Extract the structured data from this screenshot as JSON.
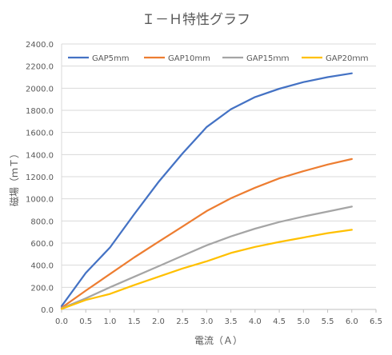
{
  "chart_data": {
    "type": "line",
    "title": "Ｉ－Ｈ特性グラフ",
    "xlabel": "電流（Ａ）",
    "ylabel": "磁場（ｍＴ）",
    "xlim": [
      0,
      6.5
    ],
    "ylim": [
      0,
      2400
    ],
    "x_ticks": [
      "0.0",
      "0.5",
      "1.0",
      "1.5",
      "2.0",
      "2.5",
      "3.0",
      "3.5",
      "4.0",
      "4.5",
      "5.0",
      "5.5",
      "6.0",
      "6.5"
    ],
    "y_ticks": [
      "0.0",
      "200.0",
      "400.0",
      "600.0",
      "800.0",
      "1000.0",
      "1200.0",
      "1400.0",
      "1600.0",
      "1800.0",
      "2000.0",
      "2200.0",
      "2400.0"
    ],
    "grid": "horizontal",
    "legend": "top",
    "x": [
      0,
      0.5,
      1.0,
      1.5,
      2.0,
      2.5,
      3.0,
      3.5,
      4.0,
      4.5,
      5.0,
      5.5,
      6.0
    ],
    "series": [
      {
        "name": "GAP5mm",
        "color": "#4472C4",
        "values": [
          30,
          330,
          560,
          860,
          1150,
          1410,
          1650,
          1810,
          1920,
          1995,
          2055,
          2100,
          2135
        ]
      },
      {
        "name": "GAP10mm",
        "color": "#ED7D31",
        "values": [
          15,
          170,
          320,
          470,
          610,
          750,
          890,
          1005,
          1100,
          1185,
          1250,
          1310,
          1360
        ]
      },
      {
        "name": "GAP15ｍｍ",
        "color": "#A5A5A5",
        "values": [
          10,
          100,
          200,
          295,
          390,
          485,
          580,
          660,
          730,
          790,
          840,
          885,
          930
        ]
      },
      {
        "name": "GAP20ｍｍ",
        "color": "#FFC000",
        "values": [
          5,
          85,
          140,
          220,
          295,
          370,
          435,
          510,
          565,
          610,
          650,
          690,
          720
        ]
      }
    ]
  }
}
